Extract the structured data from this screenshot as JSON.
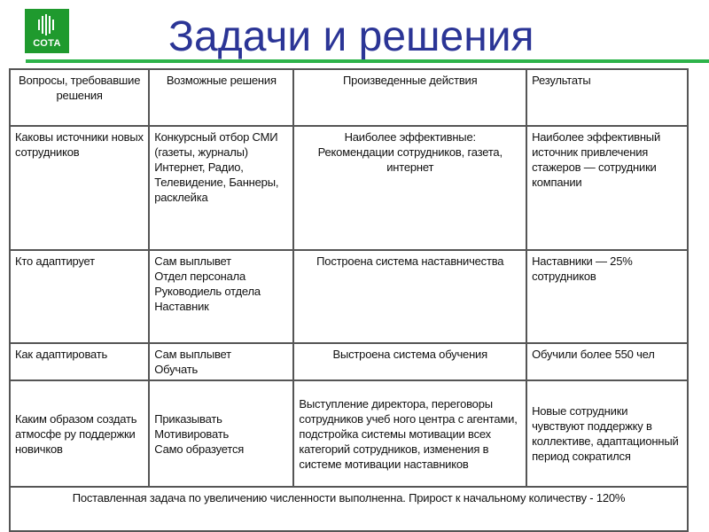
{
  "logo": {
    "text": "СОТА"
  },
  "title": "Задачи и решения",
  "table": {
    "headers": [
      "Вопросы, требовавшие решения",
      "Возможные решения",
      "Произведенные действия",
      "Результаты"
    ],
    "rows": [
      [
        "Каковы источники новых сотрудников",
        "Конкурсный отбор СМИ (газеты, журналы)\nИнтернет, Радио, Телевидение, Баннеры, расклейка",
        "Наиболее эффективные:\nРекомендации сотрудников, газета, интернет",
        "Наиболее эффективный источник привлечения стажеров — сотрудники компании"
      ],
      [
        "Кто адаптирует",
        "Сам выплывет\nОтдел персонала\nРуководиель отдела\nНаставник",
        "Построена система наставничества",
        "Наставники — 25% сотрудников"
      ],
      [
        "Как адаптировать",
        "Сам выплывет\nОбучать",
        "Выстроена система обучения",
        "Обучили более 550 чел"
      ],
      [
        "Каким образом создать атмосфе ру поддержки новичков",
        "Приказывать\nМотивировать\nСамо образуется",
        "Выступление директора, переговоры сотрудников учеб ного центра с агентами, подстройка системы мотивации всех категорий сотрудников, изменения в системе мотивации наставников",
        "Новые сотрудники чувствуют поддержку в коллективе, адаптационный период сократился"
      ]
    ],
    "footer": "Поставленная задача по увеличению численности выполненна. Прирост к начальному количеству - 120%"
  }
}
